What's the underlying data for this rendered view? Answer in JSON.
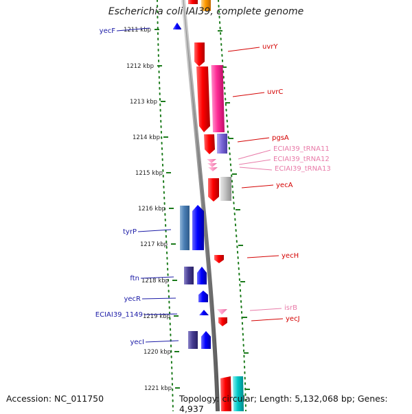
{
  "title": "Escherichia coli IAI39, complete genome",
  "footer": {
    "accession": "Accession: NC_011750",
    "topology": "Topology: circular; Length: 5,132,068 bp; Genes: 4,937"
  },
  "colors": {
    "forward_label": "#1a1aa6",
    "reverse_label": "#d40000",
    "trna_label": "#e87aa8",
    "ruler": "#1a7a1a",
    "backbone": "#8c8c8c"
  },
  "ticks": [
    {
      "label": "1211 kbp"
    },
    {
      "label": "1212 kbp"
    },
    {
      "label": "1213 kbp"
    },
    {
      "label": "1214 kbp"
    },
    {
      "label": "1215 kbp"
    },
    {
      "label": "1216 kbp"
    },
    {
      "label": "1217 kbp"
    },
    {
      "label": "1218 kbp"
    },
    {
      "label": "1219 kbp"
    },
    {
      "label": "1220 kbp"
    },
    {
      "label": "1221 kbp"
    }
  ],
  "genes": [
    {
      "name": "yecF",
      "strand": "forward"
    },
    {
      "name": "tyrP",
      "strand": "forward"
    },
    {
      "name": "ftn",
      "strand": "forward"
    },
    {
      "name": "yecR",
      "strand": "forward"
    },
    {
      "name": "ECIAI39_1149",
      "strand": "forward"
    },
    {
      "name": "yecI",
      "strand": "forward"
    },
    {
      "name": "uvrY",
      "strand": "reverse"
    },
    {
      "name": "uvrC",
      "strand": "reverse"
    },
    {
      "name": "pgsA",
      "strand": "reverse"
    },
    {
      "name": "ECIAI39_tRNA11",
      "strand": "reverse",
      "type": "tRNA"
    },
    {
      "name": "ECIAI39_tRNA12",
      "strand": "reverse",
      "type": "tRNA"
    },
    {
      "name": "ECIAI39_tRNA13",
      "strand": "reverse",
      "type": "tRNA"
    },
    {
      "name": "yecA",
      "strand": "reverse"
    },
    {
      "name": "yecH",
      "strand": "reverse"
    },
    {
      "name": "isrB",
      "strand": "reverse",
      "type": "sRNA"
    },
    {
      "name": "yecJ",
      "strand": "reverse"
    }
  ]
}
